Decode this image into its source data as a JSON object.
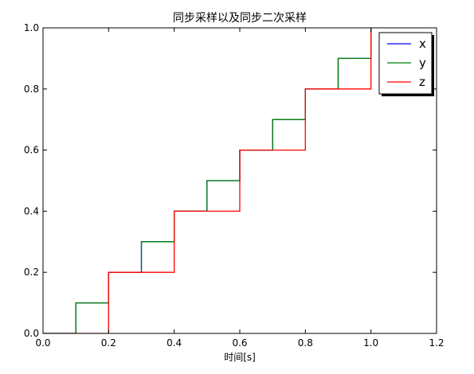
{
  "chart_data": {
    "type": "line",
    "title": "同步采样以及同步二次采样",
    "xlabel": "时间[s]",
    "ylabel": "",
    "xlim": [
      0.0,
      1.2
    ],
    "ylim": [
      0.0,
      1.0
    ],
    "xticks": [
      "0.0",
      "0.2",
      "0.4",
      "0.6",
      "0.8",
      "1.0",
      "1.2"
    ],
    "yticks": [
      "0.0",
      "0.2",
      "0.4",
      "0.6",
      "0.8",
      "1.0"
    ],
    "grid": false,
    "legend": {
      "placement": "top-right"
    },
    "series": [
      {
        "name": "x",
        "color": "#0000ff",
        "x": [
          0.0,
          0.1,
          0.2,
          0.3,
          0.4,
          0.5,
          0.6,
          0.7,
          0.8,
          0.9,
          1.0
        ],
        "y": [
          0.0,
          0.1,
          0.2,
          0.3,
          0.4,
          0.5,
          0.6,
          0.7,
          0.8,
          0.9,
          1.0
        ]
      },
      {
        "name": "y",
        "color": "#008000",
        "x": [
          0.0,
          0.1,
          0.2,
          0.3,
          0.4,
          0.5,
          0.6,
          0.7,
          0.8,
          0.9,
          1.0
        ],
        "y": [
          0.0,
          0.1,
          0.2,
          0.3,
          0.4,
          0.5,
          0.6,
          0.7,
          0.8,
          0.9,
          1.0
        ]
      },
      {
        "name": "z",
        "color": "#ff0000",
        "x": [
          0.0,
          0.2,
          0.4,
          0.6,
          0.8,
          1.0
        ],
        "y": [
          0.0,
          0.2,
          0.4,
          0.6,
          0.8,
          1.0
        ]
      }
    ]
  }
}
